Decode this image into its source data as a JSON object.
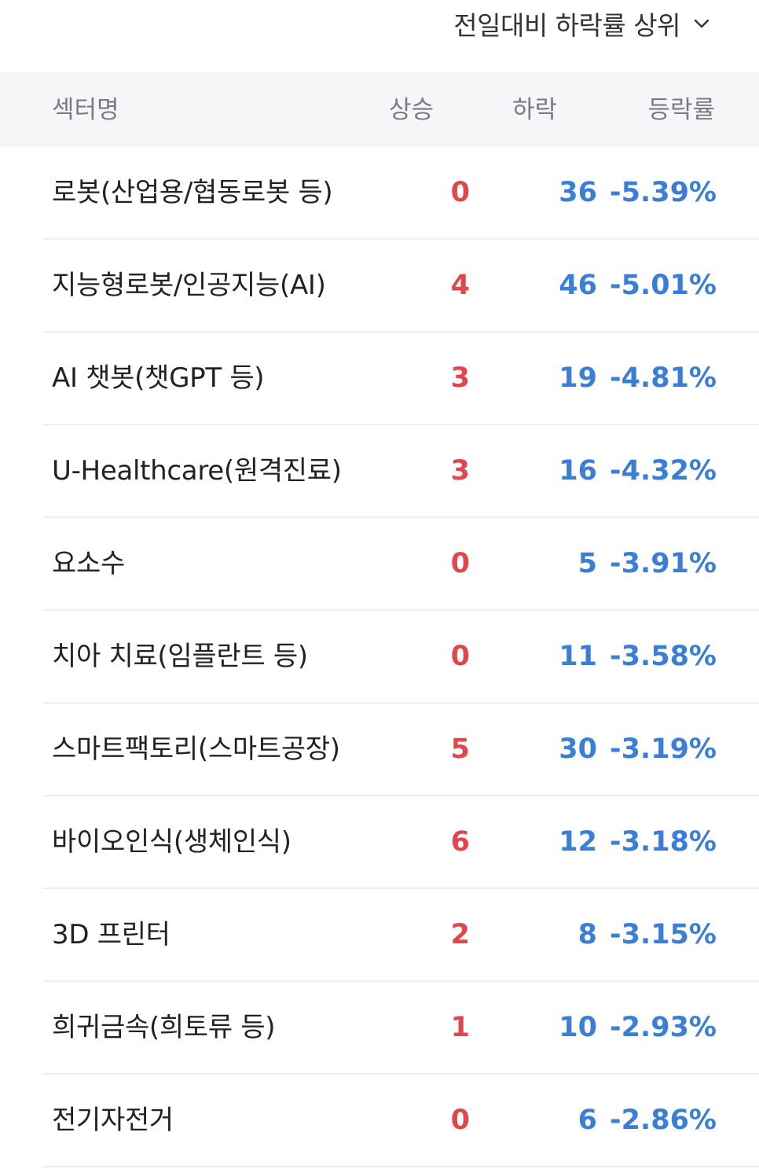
{
  "sort": {
    "label": "전일대비 하락률 상위",
    "icon": "chevron-down-icon"
  },
  "colors": {
    "up": "#e0474c",
    "down": "#3a7fd5",
    "header_bg": "#f5f6f8",
    "header_text": "#777c84"
  },
  "header": {
    "name": "섹터명",
    "up": "상승",
    "down": "하락",
    "rate": "등락률"
  },
  "rows": [
    {
      "name": "로봇(산업용/협동로봇 등)",
      "up": "0",
      "down": "36",
      "rate": "-5.39%"
    },
    {
      "name": "지능형로봇/인공지능(AI)",
      "up": "4",
      "down": "46",
      "rate": "-5.01%"
    },
    {
      "name": "AI 챗봇(챗GPT 등)",
      "up": "3",
      "down": "19",
      "rate": "-4.81%"
    },
    {
      "name": "U-Healthcare(원격진료)",
      "up": "3",
      "down": "16",
      "rate": "-4.32%"
    },
    {
      "name": "요소수",
      "up": "0",
      "down": "5",
      "rate": "-3.91%"
    },
    {
      "name": "치아 치료(임플란트 등)",
      "up": "0",
      "down": "11",
      "rate": "-3.58%"
    },
    {
      "name": "스마트팩토리(스마트공장)",
      "up": "5",
      "down": "30",
      "rate": "-3.19%"
    },
    {
      "name": "바이오인식(생체인식)",
      "up": "6",
      "down": "12",
      "rate": "-3.18%"
    },
    {
      "name": "3D 프린터",
      "up": "2",
      "down": "8",
      "rate": "-3.15%"
    },
    {
      "name": "희귀금속(희토류 등)",
      "up": "1",
      "down": "10",
      "rate": "-2.93%"
    },
    {
      "name": "전기자전거",
      "up": "0",
      "down": "6",
      "rate": "-2.86%"
    }
  ]
}
